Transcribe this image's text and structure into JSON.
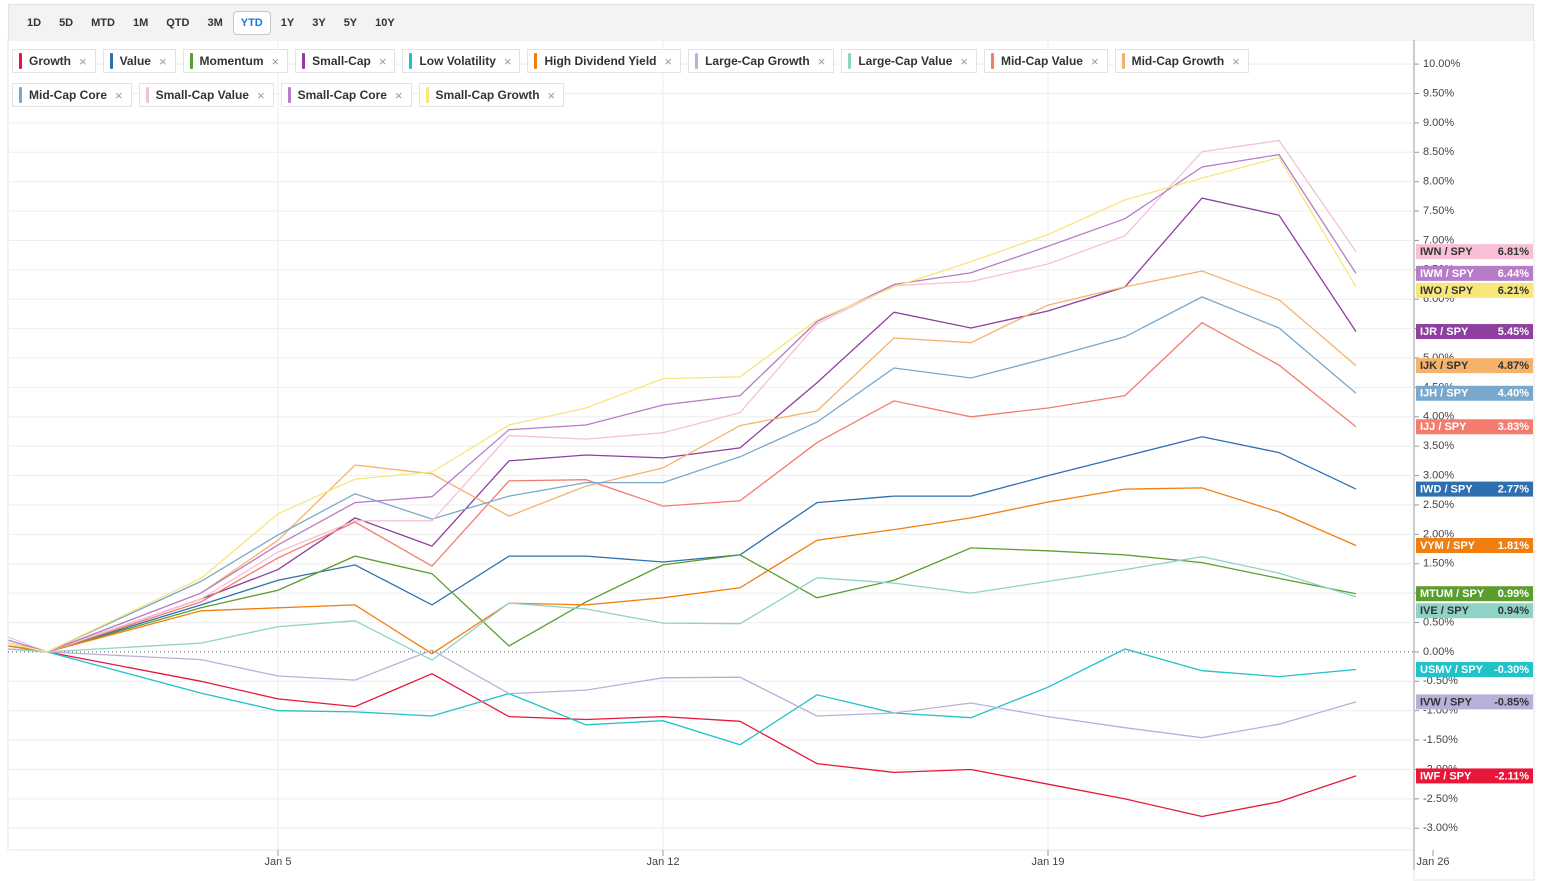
{
  "toolbar": {
    "ranges": [
      "1D",
      "5D",
      "MTD",
      "1M",
      "QTD",
      "3M",
      "YTD",
      "1Y",
      "3Y",
      "5Y",
      "10Y"
    ],
    "selected": "YTD"
  },
  "chart_data": {
    "type": "line",
    "x": [
      -0.5,
      0,
      2,
      3,
      4,
      5,
      6,
      7,
      8,
      9,
      10,
      11,
      12,
      13,
      14,
      15,
      16,
      17
    ],
    "xlim": [
      -0.5,
      18
    ],
    "xticks": [
      {
        "value": 3,
        "label": "Jan 5"
      },
      {
        "value": 8,
        "label": "Jan 12"
      },
      {
        "value": 13,
        "label": "Jan 19"
      },
      {
        "value": 18,
        "label": "Jan 26"
      }
    ],
    "ylim": [
      -3.37,
      10.41
    ],
    "yticks": [
      {
        "value": 10,
        "label": "10.00%"
      },
      {
        "value": 9.5,
        "label": "9.50%"
      },
      {
        "value": 9,
        "label": "9.00%"
      },
      {
        "value": 8.5,
        "label": "8.50%"
      },
      {
        "value": 8,
        "label": "8.00%"
      },
      {
        "value": 7.5,
        "label": "7.50%"
      },
      {
        "value": 7,
        "label": "7.00%"
      },
      {
        "value": 6.5,
        "label": "6.50%"
      },
      {
        "value": 6,
        "label": "6.00%"
      },
      {
        "value": 5.5,
        "label": "5.50%"
      },
      {
        "value": 5,
        "label": "5.00%"
      },
      {
        "value": 4.5,
        "label": "4.50%"
      },
      {
        "value": 4,
        "label": "4.00%"
      },
      {
        "value": 3.5,
        "label": "3.50%"
      },
      {
        "value": 3,
        "label": "3.00%"
      },
      {
        "value": 2.5,
        "label": "2.50%"
      },
      {
        "value": 2,
        "label": "2.00%"
      },
      {
        "value": 1.5,
        "label": "1.50%"
      },
      {
        "value": 1,
        "label": "1.00%"
      },
      {
        "value": 0.5,
        "label": "0.50%"
      },
      {
        "value": 0,
        "label": "0.00%"
      },
      {
        "value": -0.5,
        "label": "-0.50%"
      },
      {
        "value": -1,
        "label": "-1.00%"
      },
      {
        "value": -1.5,
        "label": "-1.50%"
      },
      {
        "value": -2,
        "label": "-2.00%"
      },
      {
        "value": -2.5,
        "label": "-2.50%"
      },
      {
        "value": -3,
        "label": "-3.00%"
      }
    ],
    "grid": true,
    "series": [
      {
        "name": "Growth",
        "ticker": "IWF / SPY",
        "color": "#e8173a",
        "last_label": "-2.11%",
        "values": [
          0.05,
          0,
          -0.5,
          -0.8,
          -0.93,
          -0.37,
          -1.1,
          -1.15,
          -1.1,
          -1.18,
          -1.9,
          -2.05,
          -2.0,
          -2.25,
          -2.5,
          -2.8,
          -2.55,
          -2.11
        ]
      },
      {
        "name": "Value",
        "ticker": "IWD / SPY",
        "color": "#2e6fb0",
        "last_label": "2.77%",
        "values": [
          0.1,
          0,
          0.8,
          1.22,
          1.48,
          0.8,
          1.63,
          1.63,
          1.53,
          1.65,
          2.54,
          2.65,
          2.65,
          3.0,
          3.33,
          3.66,
          3.39,
          2.77
        ]
      },
      {
        "name": "Momentum",
        "ticker": "MTUM / SPY",
        "color": "#5a9e2f",
        "last_label": "0.99%",
        "values": [
          0.1,
          0,
          0.75,
          1.05,
          1.63,
          1.33,
          0.1,
          0.85,
          1.48,
          1.65,
          0.92,
          1.22,
          1.77,
          1.72,
          1.65,
          1.52,
          1.25,
          0.99
        ]
      },
      {
        "name": "Small-Cap",
        "ticker": "IJR / SPY",
        "color": "#8e3fa0",
        "last_label": "5.45%",
        "values": [
          0.15,
          0,
          0.9,
          1.4,
          2.28,
          1.8,
          3.25,
          3.35,
          3.3,
          3.47,
          4.58,
          5.78,
          5.51,
          5.8,
          6.21,
          7.72,
          7.43,
          5.45
        ]
      },
      {
        "name": "Low Volatility",
        "ticker": "USMV / SPY",
        "color": "#1fc3c9",
        "last_label": "-0.30%",
        "values": [
          0.05,
          0,
          -0.7,
          -1.0,
          -1.02,
          -1.09,
          -0.71,
          -1.24,
          -1.17,
          -1.58,
          -0.73,
          -1.04,
          -1.12,
          -0.6,
          0.05,
          -0.32,
          -0.42,
          -0.3
        ]
      },
      {
        "name": "High Dividend Yield",
        "ticker": "VYM / SPY",
        "color": "#f07f0f",
        "last_label": "1.81%",
        "values": [
          0.1,
          0,
          0.7,
          0.75,
          0.8,
          -0.03,
          0.83,
          0.8,
          0.92,
          1.09,
          1.9,
          2.08,
          2.28,
          2.55,
          2.77,
          2.79,
          2.38,
          1.81
        ]
      },
      {
        "name": "Large-Cap Growth",
        "ticker": "IVW / SPY",
        "color": "#b8b0d8",
        "last_label": "-0.85%",
        "values": [
          0.05,
          0,
          -0.13,
          -0.41,
          -0.48,
          0.03,
          -0.71,
          -0.65,
          -0.44,
          -0.43,
          -1.09,
          -1.04,
          -0.87,
          -1.1,
          -1.29,
          -1.46,
          -1.23,
          -0.85
        ]
      },
      {
        "name": "Large-Cap Value",
        "ticker": "IVE / SPY",
        "color": "#8fd3c7",
        "last_label": "0.94%",
        "values": [
          0.05,
          0,
          0.15,
          0.43,
          0.53,
          -0.14,
          0.83,
          0.73,
          0.49,
          0.48,
          1.26,
          1.17,
          1.0,
          1.2,
          1.4,
          1.62,
          1.34,
          0.94
        ]
      },
      {
        "name": "Mid-Cap Value",
        "ticker": "IJJ / SPY",
        "color": "#f47c6e",
        "last_label": "3.83%",
        "values": [
          0.15,
          0,
          0.85,
          1.6,
          2.21,
          1.46,
          2.91,
          2.93,
          2.48,
          2.57,
          3.56,
          4.27,
          4.0,
          4.15,
          4.36,
          5.6,
          4.88,
          3.83
        ]
      },
      {
        "name": "Mid-Cap Growth",
        "ticker": "IJK / SPY",
        "color": "#f5b26b",
        "last_label": "4.87%",
        "values": [
          0.15,
          0,
          1.0,
          1.9,
          3.18,
          3.03,
          2.31,
          2.82,
          3.13,
          3.85,
          4.1,
          5.34,
          5.26,
          5.9,
          6.21,
          6.48,
          5.99,
          4.87
        ]
      },
      {
        "name": "Mid-Cap Core",
        "ticker": "IJH / SPY",
        "color": "#7aa8cc",
        "last_label": "4.40%",
        "values": [
          0.15,
          0,
          1.2,
          1.99,
          2.69,
          2.26,
          2.65,
          2.88,
          2.88,
          3.32,
          3.91,
          4.83,
          4.66,
          5.0,
          5.36,
          6.04,
          5.51,
          4.4
        ]
      },
      {
        "name": "Small-Cap Value",
        "ticker": "IWN / SPY",
        "color": "#f7c0d6",
        "last_label": "6.81%",
        "values": [
          0.25,
          0,
          0.9,
          1.7,
          2.23,
          2.23,
          3.68,
          3.62,
          3.73,
          4.07,
          5.58,
          6.23,
          6.3,
          6.6,
          7.08,
          8.51,
          8.7,
          6.81
        ]
      },
      {
        "name": "Small-Cap Core",
        "ticker": "IWM / SPY",
        "color": "#b77cc7",
        "last_label": "6.44%",
        "values": [
          0.2,
          0,
          1.0,
          1.82,
          2.54,
          2.64,
          3.78,
          3.86,
          4.2,
          4.36,
          5.62,
          6.25,
          6.45,
          6.9,
          7.37,
          8.25,
          8.46,
          6.44
        ]
      },
      {
        "name": "Small-Cap Growth",
        "ticker": "IWO / SPY",
        "color": "#f7e77a",
        "last_label": "6.21%",
        "values": [
          0.15,
          0,
          1.25,
          2.35,
          2.94,
          3.06,
          3.86,
          4.15,
          4.65,
          4.68,
          5.65,
          6.21,
          6.64,
          7.1,
          7.69,
          8.06,
          8.41,
          6.21
        ]
      }
    ]
  }
}
